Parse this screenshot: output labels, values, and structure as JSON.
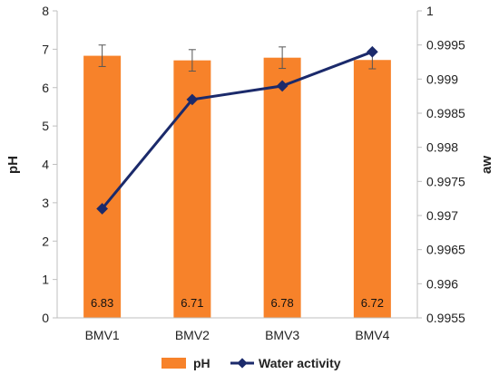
{
  "chart_data": {
    "type": "bar",
    "categories": [
      "BMV1",
      "BMV2",
      "BMV3",
      "BMV4"
    ],
    "series": [
      {
        "name": "pH",
        "type": "bar",
        "axis": "left",
        "values": [
          6.83,
          6.71,
          6.78,
          6.72
        ],
        "error": [
          0.28,
          0.28,
          0.28,
          0.23
        ],
        "data_labels": [
          "6.83",
          "6.71",
          "6.78",
          "6.72"
        ],
        "color": "#F7822A"
      },
      {
        "name": "Water activity",
        "type": "line",
        "axis": "right",
        "values": [
          0.9971,
          0.9987,
          0.9989,
          0.9994
        ],
        "color": "#1B2A6B",
        "marker": "diamond"
      }
    ],
    "ylabel": "pH",
    "y2label": "aw",
    "ylim": [
      0,
      8
    ],
    "y2lim": [
      0.9955,
      1
    ],
    "yticks": [
      "0",
      "1",
      "2",
      "3",
      "4",
      "5",
      "6",
      "7",
      "8"
    ],
    "y2ticks": [
      "0.9955",
      "0.996",
      "0.9965",
      "0.997",
      "0.9975",
      "0.998",
      "0.9985",
      "0.999",
      "0.9995",
      "1"
    ],
    "grid": false,
    "legend": "bottom",
    "legend_entries": [
      "pH",
      "Water activity"
    ]
  }
}
